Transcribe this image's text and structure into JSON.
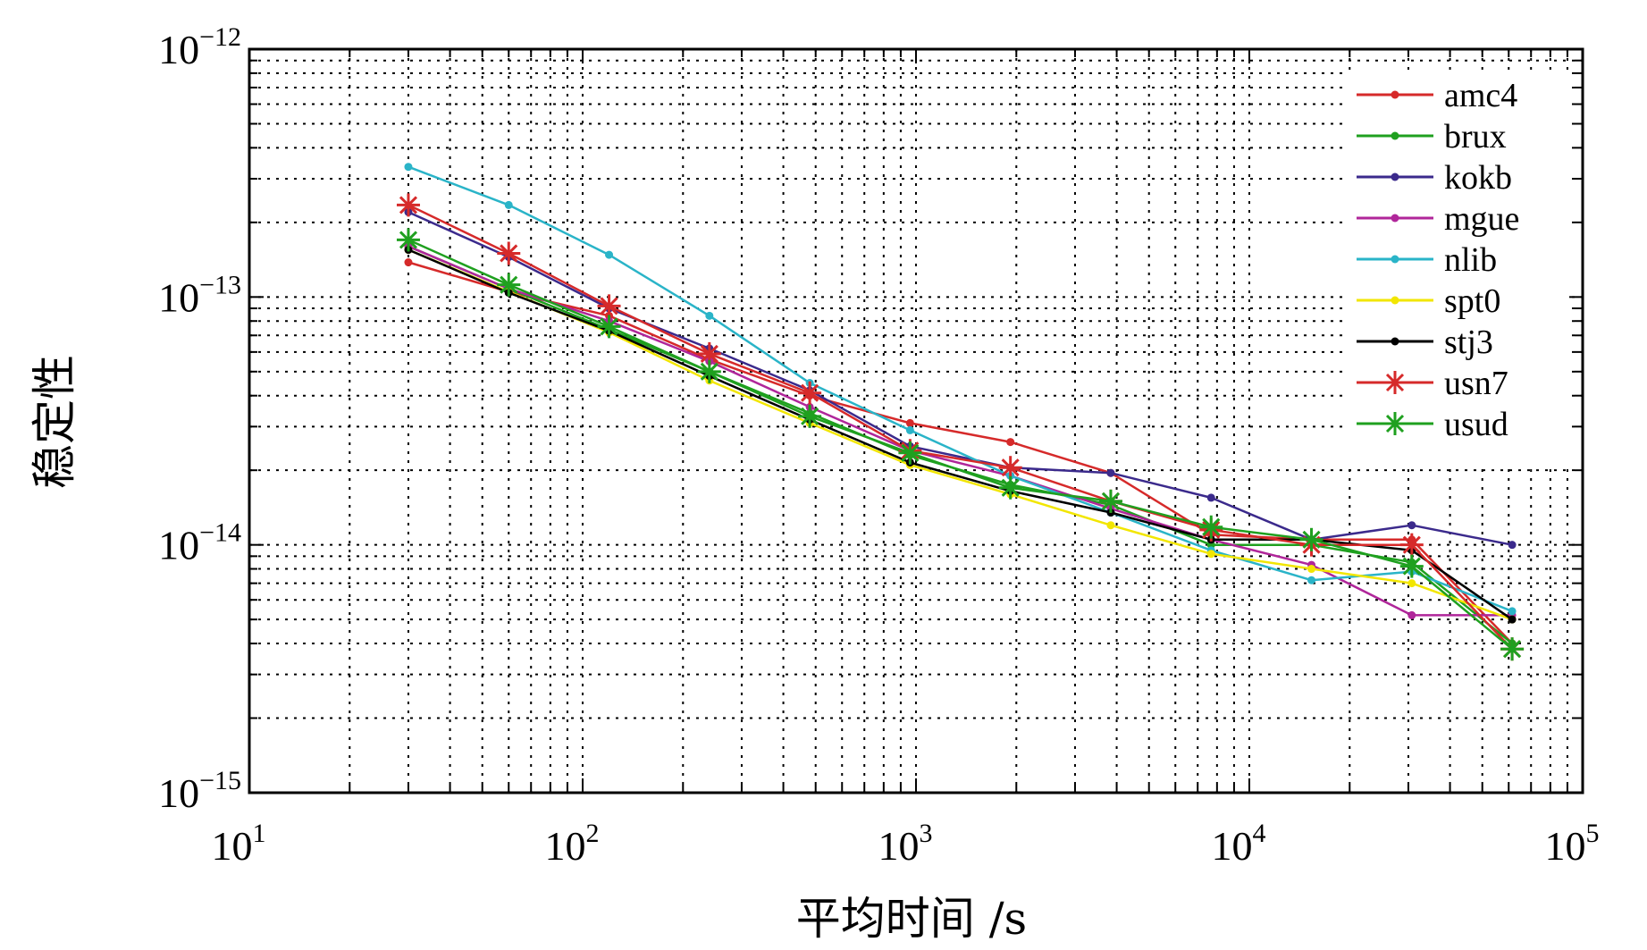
{
  "chart_data": {
    "type": "line",
    "xscale": "log",
    "yscale": "log",
    "xlabel": "平均时间 /s",
    "ylabel": "稳定性",
    "xlim": [
      10,
      100000
    ],
    "ylim": [
      1e-15,
      1e-12
    ],
    "grid": true,
    "legend": "top-right",
    "x_ticks": [
      {
        "base": "10",
        "exp": "1",
        "value": 10
      },
      {
        "base": "10",
        "exp": "2",
        "value": 100
      },
      {
        "base": "10",
        "exp": "3",
        "value": 1000
      },
      {
        "base": "10",
        "exp": "4",
        "value": 10000
      },
      {
        "base": "10",
        "exp": "5",
        "value": 100000
      }
    ],
    "y_ticks": [
      {
        "base": "10",
        "exp": "−12",
        "value": 1e-12
      },
      {
        "base": "10",
        "exp": "−13",
        "value": 1e-13
      },
      {
        "base": "10",
        "exp": "−14",
        "value": 1e-14
      },
      {
        "base": "10",
        "exp": "−15",
        "value": 1e-15
      }
    ],
    "x": [
      30,
      60,
      120,
      240,
      480,
      960,
      1920,
      3840,
      7680,
      15360,
      30720,
      61440
    ],
    "series": [
      {
        "name": "amc4",
        "color": "#d62a2a",
        "marker": "dot",
        "values": [
          1.38e-13,
          1.05e-13,
          8.4e-14,
          5.6e-14,
          4e-14,
          3.1e-14,
          2.6e-14,
          1.95e-14,
          1.1e-14,
          1.05e-14,
          1.05e-14,
          4e-15
        ]
      },
      {
        "name": "brux",
        "color": "#1fa01f",
        "marker": "dot",
        "values": [
          1.6e-13,
          1.08e-13,
          7.4e-14,
          5e-14,
          3.4e-14,
          2.3e-14,
          1.75e-14,
          1.45e-14,
          1e-14,
          1e-14,
          8.5e-15,
          4e-15
        ]
      },
      {
        "name": "kokb",
        "color": "#3b2a8c",
        "marker": "dot",
        "values": [
          2.2e-13,
          1.45e-13,
          9e-14,
          6.2e-14,
          4.2e-14,
          2.5e-14,
          2.05e-14,
          1.95e-14,
          1.55e-14,
          1.05e-14,
          1.2e-14,
          1e-14
        ]
      },
      {
        "name": "mgue",
        "color": "#b0269a",
        "marker": "dot",
        "values": [
          1.6e-13,
          1.08e-13,
          8e-14,
          5.5e-14,
          3.6e-14,
          2.4e-14,
          1.9e-14,
          1.4e-14,
          1.05e-14,
          8.3e-15,
          5.2e-15,
          5.2e-15
        ]
      },
      {
        "name": "nlib",
        "color": "#2ab4c8",
        "marker": "dot",
        "values": [
          3.35e-13,
          2.35e-13,
          1.48e-13,
          8.4e-14,
          4.5e-14,
          2.9e-14,
          1.9e-14,
          1.35e-14,
          9.5e-15,
          7.2e-15,
          7.8e-15,
          5.4e-15
        ]
      },
      {
        "name": "spt0",
        "color": "#f2e600",
        "marker": "dot",
        "values": [
          1.55e-13,
          1.05e-13,
          7.2e-14,
          4.6e-14,
          3.1e-14,
          2.1e-14,
          1.6e-14,
          1.2e-14,
          9.2e-15,
          8e-15,
          7e-15,
          5e-15
        ]
      },
      {
        "name": "stj3",
        "color": "#000000",
        "marker": "dot",
        "values": [
          1.55e-13,
          1.04e-13,
          7.3e-14,
          4.8e-14,
          3.2e-14,
          2.15e-14,
          1.65e-14,
          1.35e-14,
          1.05e-14,
          1.05e-14,
          9.5e-15,
          5e-15
        ]
      },
      {
        "name": "usn7",
        "color": "#d62a2a",
        "marker": "star",
        "values": [
          2.35e-13,
          1.5e-13,
          9.2e-14,
          5.9e-14,
          4.1e-14,
          2.4e-14,
          2.05e-14,
          1.5e-14,
          1.15e-14,
          1e-14,
          1e-14,
          3.8e-15
        ]
      },
      {
        "name": "usud",
        "color": "#1fa01f",
        "marker": "star",
        "values": [
          1.7e-13,
          1.12e-13,
          7.6e-14,
          5e-14,
          3.3e-14,
          2.35e-14,
          1.7e-14,
          1.5e-14,
          1.18e-14,
          1.05e-14,
          8.2e-15,
          3.8e-15
        ]
      }
    ]
  }
}
